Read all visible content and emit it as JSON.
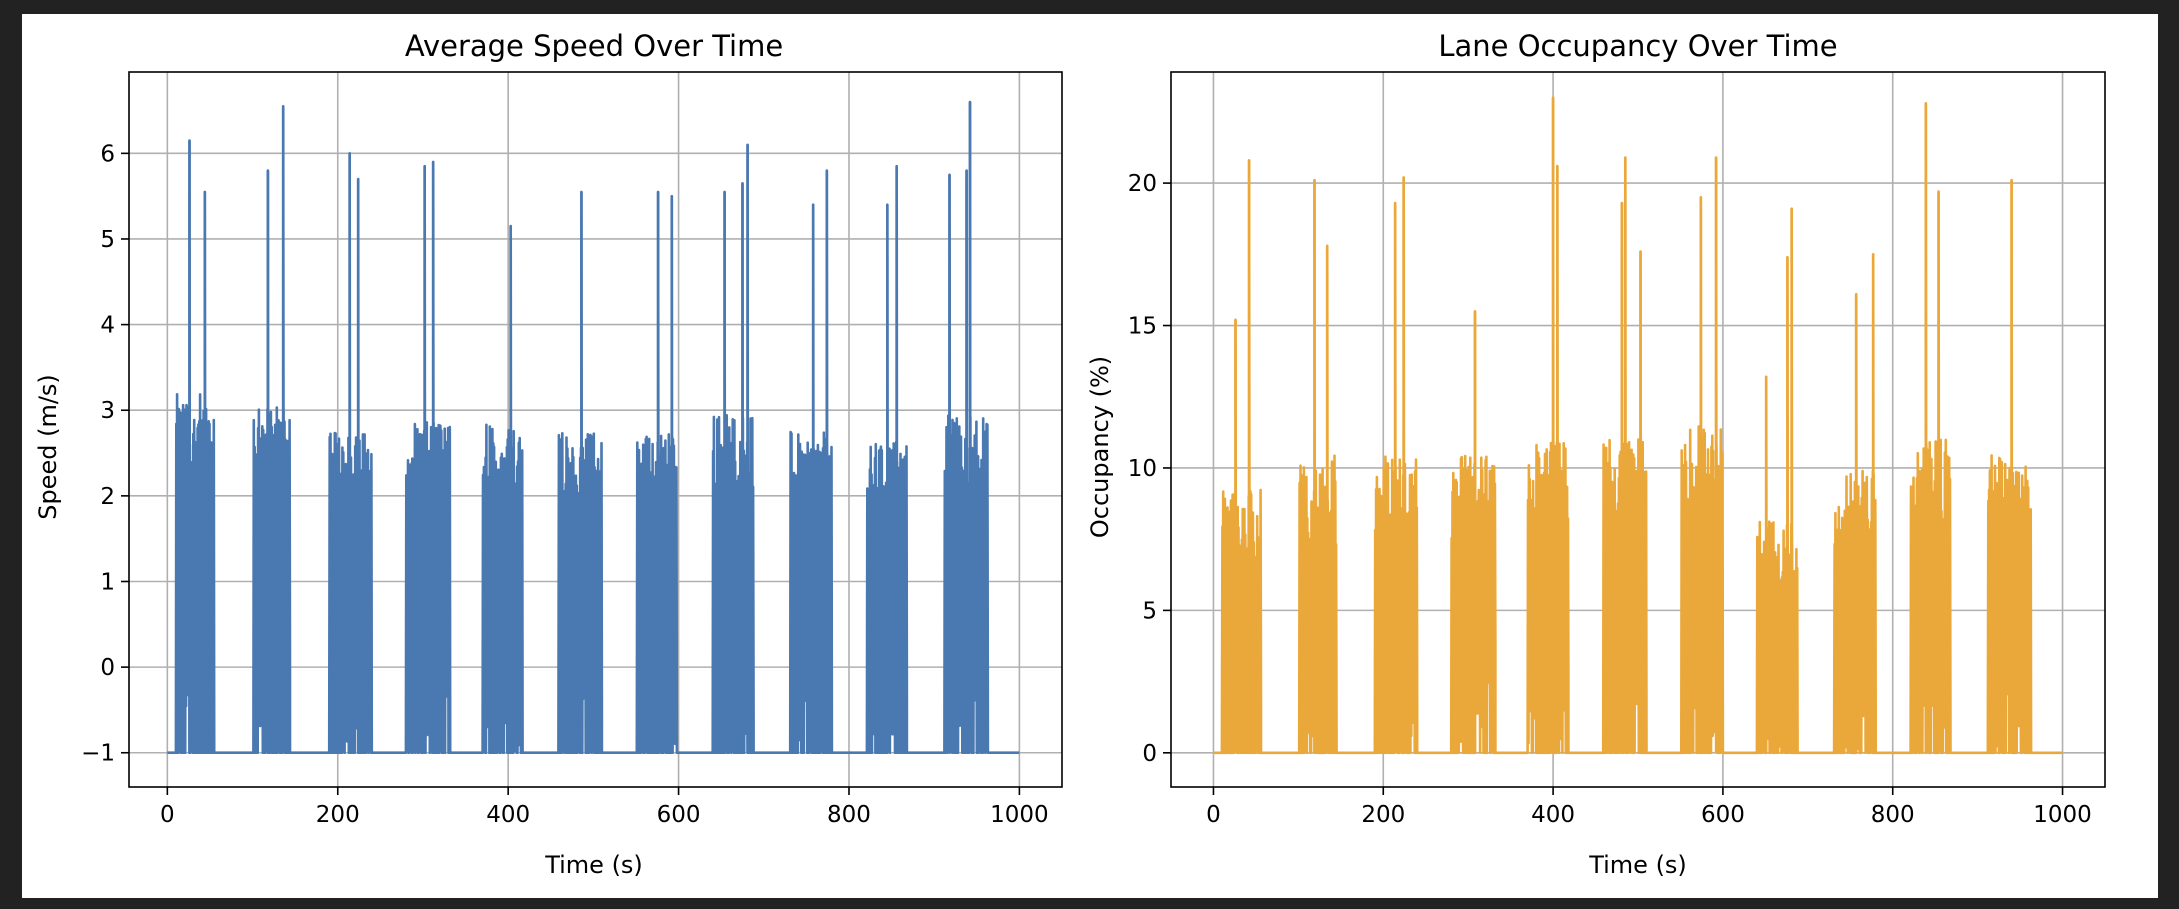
{
  "chart_data": [
    {
      "type": "line",
      "title": "Average Speed Over Time",
      "xlabel": "Time (s)",
      "ylabel": "Speed (m/s)",
      "xlim": [
        -45,
        1050
      ],
      "ylim": [
        -1.4,
        6.95
      ],
      "xticks": [
        0,
        200,
        400,
        600,
        800,
        1000
      ],
      "yticks": [
        -1,
        0,
        1,
        2,
        3,
        4,
        5,
        6
      ],
      "ytick_labels": [
        "−1",
        "0",
        "1",
        "2",
        "3",
        "4",
        "5",
        "6"
      ],
      "grid": true,
      "color": "#4a78b0",
      "baseline": -1,
      "x_range": [
        0,
        1000
      ],
      "peaks": [
        {
          "x": 26,
          "y": 6.15
        },
        {
          "x": 44,
          "y": 5.55
        },
        {
          "x": 118,
          "y": 5.8
        },
        {
          "x": 136,
          "y": 6.55
        },
        {
          "x": 214,
          "y": 6.0
        },
        {
          "x": 224,
          "y": 5.7
        },
        {
          "x": 302,
          "y": 5.85
        },
        {
          "x": 312,
          "y": 5.9
        },
        {
          "x": 403,
          "y": 5.15
        },
        {
          "x": 486,
          "y": 5.55
        },
        {
          "x": 576,
          "y": 5.55
        },
        {
          "x": 592,
          "y": 5.5
        },
        {
          "x": 654,
          "y": 5.55
        },
        {
          "x": 675,
          "y": 5.65
        },
        {
          "x": 681,
          "y": 6.1
        },
        {
          "x": 758,
          "y": 5.4
        },
        {
          "x": 774,
          "y": 5.8
        },
        {
          "x": 845,
          "y": 5.4
        },
        {
          "x": 856,
          "y": 5.85
        },
        {
          "x": 918,
          "y": 5.75
        },
        {
          "x": 938,
          "y": 5.8
        },
        {
          "x": 942,
          "y": 6.6
        }
      ],
      "active_windows": [
        {
          "start": 10,
          "end": 55,
          "level": 2.9
        },
        {
          "start": 101,
          "end": 144,
          "level": 2.8
        },
        {
          "start": 190,
          "end": 240,
          "level": 2.5
        },
        {
          "start": 280,
          "end": 332,
          "level": 2.6
        },
        {
          "start": 370,
          "end": 417,
          "level": 2.6
        },
        {
          "start": 459,
          "end": 510,
          "level": 2.5
        },
        {
          "start": 551,
          "end": 598,
          "level": 2.5
        },
        {
          "start": 640,
          "end": 688,
          "level": 2.7
        },
        {
          "start": 731,
          "end": 780,
          "level": 2.5
        },
        {
          "start": 821,
          "end": 868,
          "level": 2.4
        },
        {
          "start": 912,
          "end": 963,
          "level": 2.7
        }
      ]
    },
    {
      "type": "line",
      "title": "Lane Occupancy Over Time",
      "xlabel": "Time (s)",
      "ylabel": "Occupancy (%)",
      "xlim": [
        -50,
        1050
      ],
      "ylim": [
        -1.2,
        23.9
      ],
      "xticks": [
        0,
        200,
        400,
        600,
        800,
        1000
      ],
      "yticks": [
        0,
        5,
        10,
        15,
        20
      ],
      "ytick_labels": [
        "0",
        "5",
        "10",
        "15",
        "20"
      ],
      "grid": true,
      "color": "#eba83a",
      "baseline": 0,
      "x_range": [
        0,
        1000
      ],
      "peaks": [
        {
          "x": 26,
          "y": 15.2
        },
        {
          "x": 42,
          "y": 20.8
        },
        {
          "x": 119,
          "y": 20.1
        },
        {
          "x": 134,
          "y": 17.8
        },
        {
          "x": 214,
          "y": 19.3
        },
        {
          "x": 224,
          "y": 20.2
        },
        {
          "x": 308,
          "y": 15.5
        },
        {
          "x": 400,
          "y": 23.0
        },
        {
          "x": 405,
          "y": 20.6
        },
        {
          "x": 481,
          "y": 19.3
        },
        {
          "x": 485,
          "y": 20.9
        },
        {
          "x": 503,
          "y": 17.6
        },
        {
          "x": 574,
          "y": 19.5
        },
        {
          "x": 592,
          "y": 20.9
        },
        {
          "x": 651,
          "y": 13.2
        },
        {
          "x": 676,
          "y": 17.4
        },
        {
          "x": 681,
          "y": 19.1
        },
        {
          "x": 757,
          "y": 16.1
        },
        {
          "x": 777,
          "y": 17.5
        },
        {
          "x": 839,
          "y": 22.8
        },
        {
          "x": 854,
          "y": 19.7
        },
        {
          "x": 940,
          "y": 20.1
        }
      ],
      "active_windows": [
        {
          "start": 10,
          "end": 56,
          "level": 8.5
        },
        {
          "start": 101,
          "end": 145,
          "level": 9.5
        },
        {
          "start": 190,
          "end": 240,
          "level": 9.5
        },
        {
          "start": 280,
          "end": 332,
          "level": 9.5
        },
        {
          "start": 370,
          "end": 418,
          "level": 10.0
        },
        {
          "start": 459,
          "end": 510,
          "level": 10.0
        },
        {
          "start": 551,
          "end": 600,
          "level": 10.5
        },
        {
          "start": 640,
          "end": 688,
          "level": 7.5
        },
        {
          "start": 731,
          "end": 780,
          "level": 9.0
        },
        {
          "start": 821,
          "end": 868,
          "level": 10.0
        },
        {
          "start": 912,
          "end": 963,
          "level": 9.5
        }
      ]
    }
  ]
}
